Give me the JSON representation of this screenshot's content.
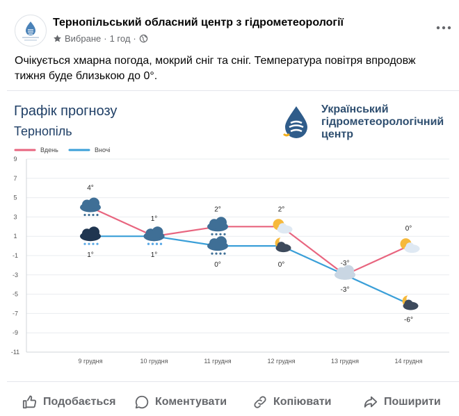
{
  "post": {
    "page_name": "Тернопільський обласний центр з гідрометеорології",
    "favorites_label": "Вибране",
    "time": "1 год",
    "separator": "·",
    "text": "Очікується хмарна погода, мокрий сніг та сніг. Температура повітря впродовж тижня буде близькою до 0°."
  },
  "image": {
    "title": "Графік прогнозу",
    "city": "Тернопіль",
    "org_line1": "Український",
    "org_line2": "гідрометеорологічний",
    "org_line3": "центр"
  },
  "chart_data": {
    "type": "line",
    "categories": [
      "9 грудня",
      "10 грудня",
      "11 грудня",
      "12 грудня",
      "13 грудня",
      "14 грудня"
    ],
    "series": [
      {
        "name": "Вдень",
        "values": [
          4,
          1,
          2,
          2,
          -3,
          0
        ],
        "labels": [
          "4°",
          "1°",
          "2°",
          "2°",
          "-3°",
          "0°"
        ],
        "color": "#e8657f",
        "icons": [
          "snow-cloud",
          "rain-cloud",
          "snow-cloud",
          "sun-cloud",
          "cloud",
          "sun-cloud"
        ]
      },
      {
        "name": "Вночі",
        "values": [
          1,
          1,
          0,
          0,
          -3,
          -6
        ],
        "labels": [
          "1°",
          "1°",
          "0°",
          "0°",
          "-3°",
          "-6°"
        ],
        "color": "#3a9fd8",
        "icons": [
          "rain-dark-cloud",
          "rain-cloud",
          "snow-cloud",
          "moon-cloud",
          "cloud",
          "moon-cloud"
        ]
      }
    ],
    "yticks": [
      9,
      7,
      5,
      3,
      1,
      -1,
      -3,
      -5,
      -7,
      -9,
      -11
    ],
    "ylim": [
      -11,
      9
    ],
    "legend": "top-left",
    "grid": true
  },
  "actions": {
    "like": "Подобається",
    "comment": "Коментувати",
    "copy": "Копіювати",
    "share": "Поширити"
  },
  "colors": {
    "day": "#e8657f",
    "night": "#3a9fd8",
    "title": "#1f3f66",
    "muted": "#65676b"
  }
}
